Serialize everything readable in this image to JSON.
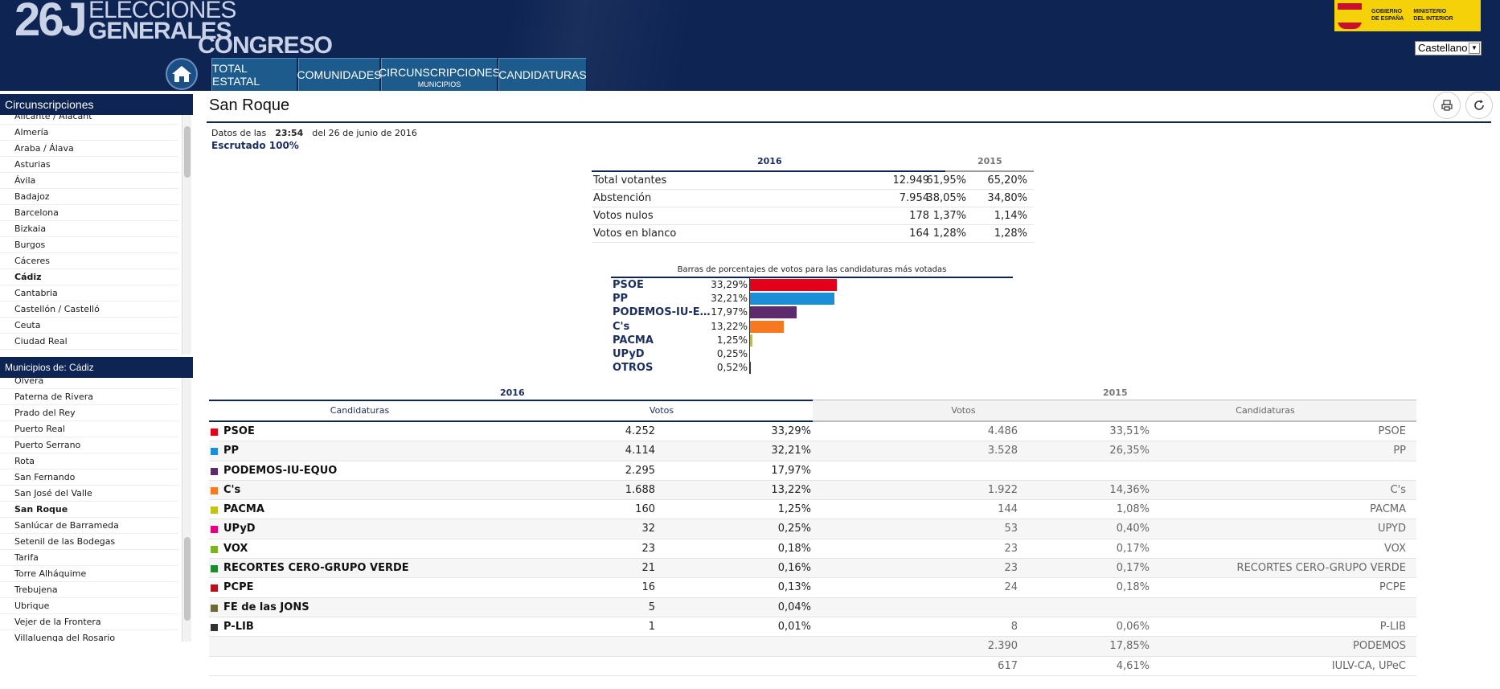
{
  "header": {
    "logo_number": "26J",
    "logo_line1": "ELECCIONES",
    "logo_line2": "GENERALES",
    "logo_line3": "CONGRESO",
    "gov_line1": "GOBIERNO\nDE ESPAÑA",
    "gov_line2": "MINISTERIO\nDEL INTERIOR",
    "language": "Castellano",
    "nav": [
      {
        "label": "TOTAL ESTATAL"
      },
      {
        "label": "COMUNIDADES"
      },
      {
        "label": "CIRCUNSCRIPCIONES",
        "sub": "MUNICIPIOS"
      },
      {
        "label": "CANDIDATURAS"
      }
    ]
  },
  "sidebar": {
    "circ_title": "Circunscripciones",
    "circ_items": [
      "Alicante / Alacant",
      "Almería",
      "Araba / Álava",
      "Asturias",
      "Ávila",
      "Badajoz",
      "Barcelona",
      "Bizkaia",
      "Burgos",
      "Cáceres",
      "Cádiz",
      "Cantabria",
      "Castellón / Castelló",
      "Ceuta",
      "Ciudad Real"
    ],
    "circ_selected": "Cádiz",
    "mun_title": "Municipios de: Cádiz",
    "mun_items": [
      "Olvera",
      "Paterna de Rivera",
      "Prado del Rey",
      "Puerto Real",
      "Puerto Serrano",
      "Rota",
      "San Fernando",
      "San José del Valle",
      "San Roque",
      "Sanlúcar de Barrameda",
      "Setenil de las Bodegas",
      "Tarifa",
      "Torre Alháquime",
      "Trebujena",
      "Ubrique",
      "Vejer de la Frontera",
      "Villaluenga del Rosario"
    ],
    "mun_selected": "San Roque"
  },
  "main": {
    "title": "San Roque",
    "datos_prefix": "Datos de las",
    "datos_time": "23:54",
    "datos_suffix": "del 26 de junio de 2016",
    "escrutado": "Escrutado 100%"
  },
  "summary": {
    "year_2016": "2016",
    "year_2015": "2015",
    "rows": [
      {
        "label": "Total votantes",
        "value": "12.949",
        "pct_2016": "61,95%",
        "pct_2015": "65,20%"
      },
      {
        "label": "Abstención",
        "value": "7.954",
        "pct_2016": "38,05%",
        "pct_2015": "34,80%"
      },
      {
        "label": "Votos nulos",
        "value": "178",
        "pct_2016": "1,37%",
        "pct_2015": "1,14%"
      },
      {
        "label": "Votos en blanco",
        "value": "164",
        "pct_2016": "1,28%",
        "pct_2015": "1,28%"
      }
    ]
  },
  "chart_data": {
    "type": "bar",
    "title": "Barras de porcentajes de votos para las candidaturas más votadas",
    "categories": [
      "PSOE",
      "PP",
      "PODEMOS-IU-E...",
      "C's",
      "PACMA",
      "UPyD",
      "OTROS"
    ],
    "values": [
      33.29,
      32.21,
      17.97,
      13.22,
      1.25,
      0.25,
      0.52
    ],
    "labels": [
      "33,29%",
      "32,21%",
      "17,97%",
      "13,22%",
      "1,25%",
      "0,25%",
      "0,52%"
    ],
    "colors": [
      "#e2001a",
      "#1a8fd8",
      "#5e2a6e",
      "#f6791f",
      "#c4c214",
      "#e4007c",
      "#333333"
    ],
    "xlim": [
      0,
      100
    ]
  },
  "results": {
    "year_2016": "2016",
    "year_2015": "2015",
    "headers": {
      "candidaturas_2016": "Candidaturas",
      "votos_2016": "Votos",
      "votos_2015": "Votos",
      "candidaturas_2015": "Candidaturas"
    },
    "rows": [
      {
        "color": "#e2001a",
        "name": "PSOE",
        "votes": "4.252",
        "pct": "33,29%",
        "votes_2015": "4.486",
        "pct_2015": "33,51%",
        "name_2015": "PSOE"
      },
      {
        "color": "#1a8fd8",
        "name": "PP",
        "votes": "4.114",
        "pct": "32,21%",
        "votes_2015": "3.528",
        "pct_2015": "26,35%",
        "name_2015": "PP"
      },
      {
        "color": "#5e2a6e",
        "name": "PODEMOS-IU-EQUO",
        "votes": "2.295",
        "pct": "17,97%",
        "votes_2015": "",
        "pct_2015": "",
        "name_2015": ""
      },
      {
        "color": "#f6791f",
        "name": "C's",
        "votes": "1.688",
        "pct": "13,22%",
        "votes_2015": "1.922",
        "pct_2015": "14,36%",
        "name_2015": "C's"
      },
      {
        "color": "#c4c214",
        "name": "PACMA",
        "votes": "160",
        "pct": "1,25%",
        "votes_2015": "144",
        "pct_2015": "1,08%",
        "name_2015": "PACMA"
      },
      {
        "color": "#e4007c",
        "name": "UPyD",
        "votes": "32",
        "pct": "0,25%",
        "votes_2015": "53",
        "pct_2015": "0,40%",
        "name_2015": "UPYD"
      },
      {
        "color": "#7ab51d",
        "name": "VOX",
        "votes": "23",
        "pct": "0,18%",
        "votes_2015": "23",
        "pct_2015": "0,17%",
        "name_2015": "VOX"
      },
      {
        "color": "#1e8a2e",
        "name": "RECORTES CERO-GRUPO VERDE",
        "votes": "21",
        "pct": "0,16%",
        "votes_2015": "23",
        "pct_2015": "0,17%",
        "name_2015": "RECORTES CERO-GRUPO VERDE"
      },
      {
        "color": "#b5121b",
        "name": "PCPE",
        "votes": "16",
        "pct": "0,13%",
        "votes_2015": "24",
        "pct_2015": "0,18%",
        "name_2015": "PCPE"
      },
      {
        "color": "#6b6b3a",
        "name": "FE de las JONS",
        "votes": "5",
        "pct": "0,04%",
        "votes_2015": "",
        "pct_2015": "",
        "name_2015": ""
      },
      {
        "color": "#333333",
        "name": "P-LIB",
        "votes": "1",
        "pct": "0,01%",
        "votes_2015": "8",
        "pct_2015": "0,06%",
        "name_2015": "P-LIB"
      },
      {
        "color": "",
        "name": "",
        "votes": "",
        "pct": "",
        "votes_2015": "2.390",
        "pct_2015": "17,85%",
        "name_2015": "PODEMOS"
      },
      {
        "color": "",
        "name": "",
        "votes": "",
        "pct": "",
        "votes_2015": "617",
        "pct_2015": "4,61%",
        "name_2015": "IULV-CA, UPeC"
      }
    ]
  }
}
